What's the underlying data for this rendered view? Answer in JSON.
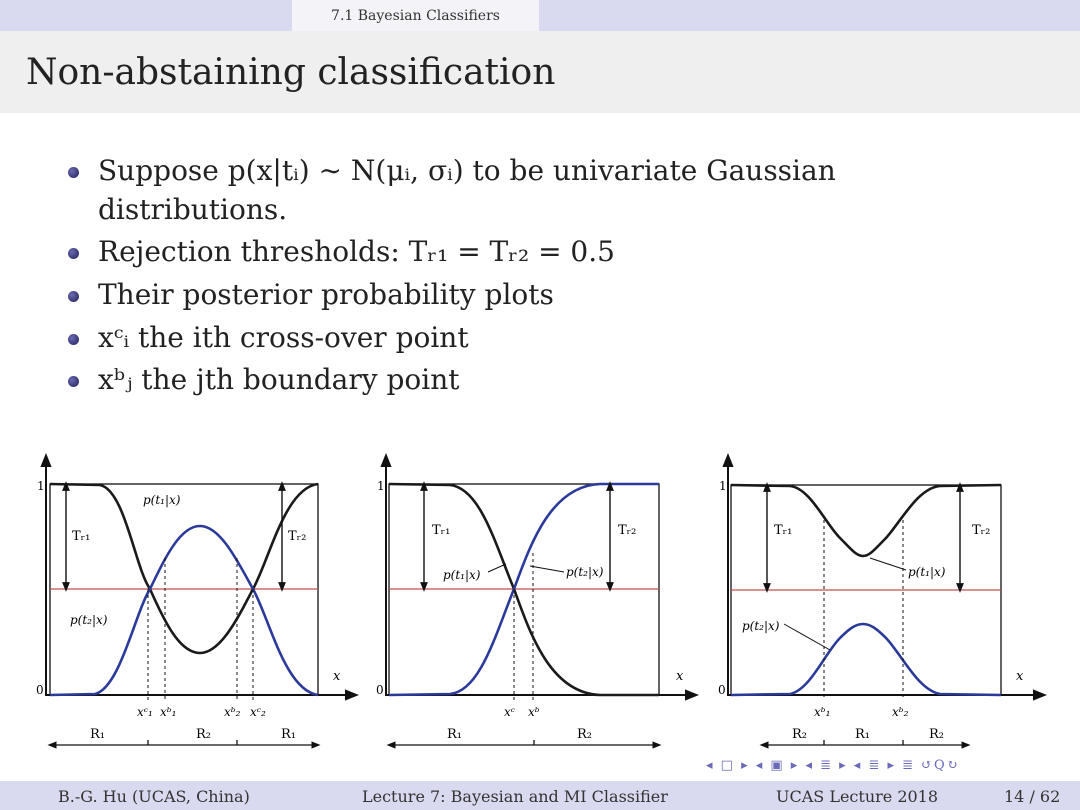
{
  "header": {
    "section": "7.1 Bayesian Classifiers"
  },
  "title": "Non-abstaining classification",
  "bullets": [
    "Suppose p(x|tᵢ) ∼ N(μᵢ, σᵢ) to be univariate Gaussian distributions.",
    "Rejection thresholds: Tᵣ₁ = Tᵣ₂ = 0.5",
    "Their posterior probability plots",
    "xᶜᵢ the ith cross-over point",
    "xᵇⱼ the jth boundary point"
  ],
  "plots": {
    "plot1": {
      "y_top": "1",
      "y_bottom": "0",
      "x_axis": "x",
      "curve1": "p(t₁|x)",
      "curve2": "p(t₂|x)",
      "thr1": "Tᵣ₁",
      "thr2": "Tᵣ₂",
      "ticks": [
        "xᶜ₁",
        "xᵇ₁",
        "xᵇ₂",
        "xᶜ₂"
      ],
      "regions": [
        "R₁",
        "R₂",
        "R₁"
      ]
    },
    "plot2": {
      "y_top": "1",
      "y_bottom": "0",
      "x_axis": "x",
      "curve1": "p(t₁|x)",
      "curve2": "p(t₂|x)",
      "thr1": "Tᵣ₁",
      "thr2": "Tᵣ₂",
      "ticks": [
        "xᶜ",
        "xᵇ"
      ],
      "regions": [
        "R₁",
        "R₂"
      ]
    },
    "plot3": {
      "y_top": "1",
      "y_bottom": "0",
      "x_axis": "x",
      "curve1": "p(t₁|x)",
      "curve2": "p(t₂|x)",
      "thr1": "Tᵣ₁",
      "thr2": "Tᵣ₂",
      "ticks": [
        "xᵇ₁",
        "xᵇ₂"
      ],
      "regions": [
        "R₂",
        "R₁",
        "R₂"
      ]
    }
  },
  "nav_symbols": "◂ □ ▸  ◂ ▣ ▸  ◂ ≣ ▸  ◂ ≣ ▸   ≣   ↺Q↻",
  "footer": {
    "author": "B.-G. Hu  (UCAS, China)",
    "lecture": "Lecture 7: Bayesian and MI Classifier",
    "event": "UCAS Lecture 2018",
    "page": "14 / 62"
  },
  "colors": {
    "curve_blue": "#2b3a9a",
    "curve_black": "#1a1a1a",
    "threshold_red": "#c0504d",
    "bar": "#d9d9ef"
  }
}
